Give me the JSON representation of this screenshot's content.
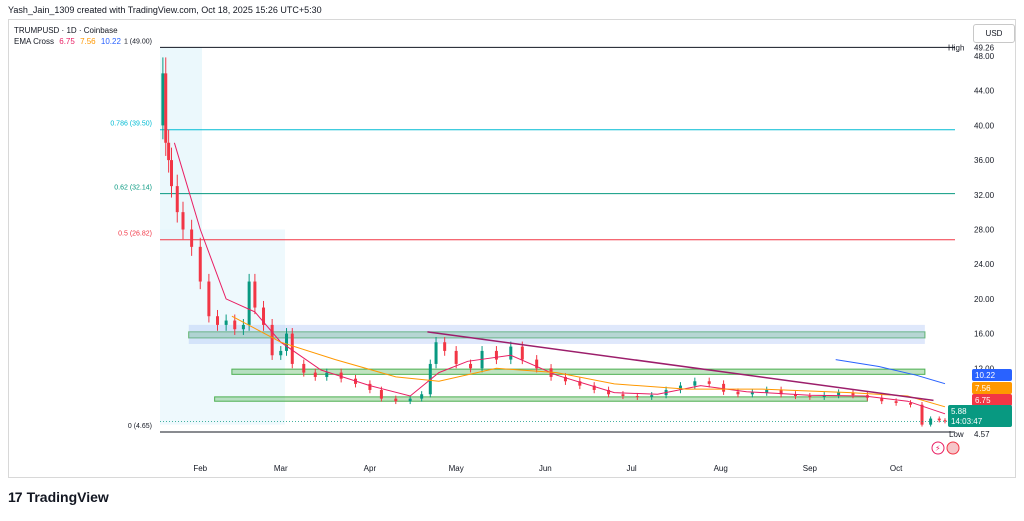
{
  "header": {
    "creator": "Yash_Jain_1309 created with TradingView.com, Oct 18, 2025 15:26 UTC+5:30"
  },
  "symbol": {
    "title": "TRUMPUSD · 1D · Coinbase",
    "indicator_label": "EMA Cross",
    "ema_values": [
      "6.75",
      "7.56",
      "10.22"
    ]
  },
  "currency_button": "USD",
  "brand": {
    "name": "TradingView",
    "logo": "tv-logo-icon"
  },
  "colors": {
    "ema_fast": "#e91e63",
    "ema_mid": "#ff9800",
    "ema_slow": "#2962ff",
    "fib_0786": "#00bcd4",
    "fib_062": "#089981",
    "fib_05": "#f23645",
    "zone": "#4caf50",
    "trendline": "#9c1e6b",
    "up": "#089981",
    "down": "#f23645"
  },
  "chart_data": {
    "type": "candlestick",
    "y_axis": {
      "min": 2,
      "max": 51,
      "ticks": [
        "48.00",
        "44.00",
        "40.00",
        "36.00",
        "32.00",
        "28.00",
        "24.00",
        "20.00",
        "16.00",
        "12.00"
      ],
      "tick_values": [
        48,
        44,
        40,
        36,
        32,
        28,
        24,
        20,
        16,
        12
      ]
    },
    "x_axis": {
      "ticks": [
        "Feb",
        "Mar",
        "Apr",
        "May",
        "Jun",
        "Jul",
        "Aug",
        "Sep",
        "Oct"
      ],
      "tick_dates": [
        "2025-02-01",
        "2025-03-01",
        "2025-04-01",
        "2025-05-01",
        "2025-06-01",
        "2025-07-01",
        "2025-08-01",
        "2025-09-01",
        "2025-10-01"
      ],
      "start": "2025-01-18",
      "end": "2025-10-18"
    },
    "fib_levels": [
      {
        "label": "1 (49.00)",
        "value": 49.0,
        "color": "#131722"
      },
      {
        "label": "0.786 (39.50)",
        "value": 39.5,
        "color": "#00bcd4"
      },
      {
        "label": "0.62 (32.14)",
        "value": 32.14,
        "color": "#089981"
      },
      {
        "label": "0.5 (26.82)",
        "value": 26.82,
        "color": "#f23645"
      },
      {
        "label": "0 (4.65)",
        "value": 4.65,
        "color": "#131722"
      }
    ],
    "high": {
      "label": "High",
      "value": "49.26"
    },
    "low": {
      "label": "Low",
      "value": "4.57"
    },
    "price_labels": [
      {
        "text": "10.22",
        "value": 10.22,
        "color": "#2962ff"
      },
      {
        "text": "7.56",
        "value": 7.56,
        "color": "#ff9800"
      },
      {
        "text": "6.75",
        "value": 6.75,
        "color": "#f23645"
      },
      {
        "text": "5.88",
        "value": 5.88,
        "color": "#089981"
      }
    ],
    "countdown": "14:03:47",
    "zones": [
      {
        "from": "2025-01-28",
        "to": "2025-10-11",
        "low": 15.5,
        "high": 16.2
      },
      {
        "from": "2025-02-12",
        "to": "2025-10-11",
        "low": 11.3,
        "high": 11.9
      },
      {
        "from": "2025-02-06",
        "to": "2025-09-21",
        "low": 8.2,
        "high": 8.7
      }
    ],
    "trendline": [
      {
        "date": "2025-04-21",
        "value": 16.2
      },
      {
        "date": "2025-10-14",
        "value": 8.3
      }
    ],
    "series": [
      {
        "name": "TRUMPUSD",
        "kind": "ohlc_close",
        "points": [
          [
            "2025-01-18",
            40.0
          ],
          [
            "2025-01-19",
            46.0
          ],
          [
            "2025-01-20",
            38.0
          ],
          [
            "2025-01-21",
            36.0
          ],
          [
            "2025-01-22",
            33.0
          ],
          [
            "2025-01-24",
            30.0
          ],
          [
            "2025-01-26",
            28.0
          ],
          [
            "2025-01-29",
            26.0
          ],
          [
            "2025-02-01",
            22.0
          ],
          [
            "2025-02-04",
            18.0
          ],
          [
            "2025-02-07",
            17.0
          ],
          [
            "2025-02-10",
            17.5
          ],
          [
            "2025-02-13",
            16.5
          ],
          [
            "2025-02-16",
            17.0
          ],
          [
            "2025-02-18",
            22.0
          ],
          [
            "2025-02-20",
            19.0
          ],
          [
            "2025-02-23",
            17.0
          ],
          [
            "2025-02-26",
            13.5
          ],
          [
            "2025-03-01",
            14.0
          ],
          [
            "2025-03-03",
            16.0
          ],
          [
            "2025-03-05",
            12.5
          ],
          [
            "2025-03-09",
            11.5
          ],
          [
            "2025-03-13",
            11.0
          ],
          [
            "2025-03-17",
            11.5
          ],
          [
            "2025-03-22",
            10.8
          ],
          [
            "2025-03-27",
            10.2
          ],
          [
            "2025-04-01",
            9.5
          ],
          [
            "2025-04-05",
            8.5
          ],
          [
            "2025-04-10",
            8.2
          ],
          [
            "2025-04-15",
            8.5
          ],
          [
            "2025-04-19",
            9.0
          ],
          [
            "2025-04-22",
            12.5
          ],
          [
            "2025-04-24",
            15.0
          ],
          [
            "2025-04-27",
            14.0
          ],
          [
            "2025-05-01",
            12.5
          ],
          [
            "2025-05-06",
            12.0
          ],
          [
            "2025-05-10",
            14.0
          ],
          [
            "2025-05-15",
            13.0
          ],
          [
            "2025-05-20",
            14.5
          ],
          [
            "2025-05-24",
            13.0
          ],
          [
            "2025-05-29",
            12.0
          ],
          [
            "2025-06-03",
            11.0
          ],
          [
            "2025-06-08",
            10.5
          ],
          [
            "2025-06-13",
            10.0
          ],
          [
            "2025-06-18",
            9.5
          ],
          [
            "2025-06-23",
            9.0
          ],
          [
            "2025-06-28",
            8.8
          ],
          [
            "2025-07-03",
            8.7
          ],
          [
            "2025-07-08",
            8.9
          ],
          [
            "2025-07-13",
            9.5
          ],
          [
            "2025-07-18",
            10.0
          ],
          [
            "2025-07-23",
            10.5
          ],
          [
            "2025-07-28",
            10.2
          ],
          [
            "2025-08-02",
            9.3
          ],
          [
            "2025-08-07",
            9.0
          ],
          [
            "2025-08-12",
            9.2
          ],
          [
            "2025-08-17",
            9.5
          ],
          [
            "2025-08-22",
            9.0
          ],
          [
            "2025-08-27",
            8.8
          ],
          [
            "2025-09-01",
            8.7
          ],
          [
            "2025-09-06",
            8.9
          ],
          [
            "2025-09-11",
            9.2
          ],
          [
            "2025-09-16",
            8.9
          ],
          [
            "2025-09-21",
            8.6
          ],
          [
            "2025-09-26",
            8.2
          ],
          [
            "2025-10-01",
            8.0
          ],
          [
            "2025-10-06",
            7.8
          ],
          [
            "2025-10-10",
            5.5
          ],
          [
            "2025-10-13",
            6.2
          ],
          [
            "2025-10-16",
            6.0
          ],
          [
            "2025-10-18",
            5.88
          ]
        ]
      },
      {
        "name": "EMA 9",
        "kind": "line",
        "color": "#e91e63",
        "points": [
          [
            "2025-01-23",
            38.0
          ],
          [
            "2025-02-01",
            28.0
          ],
          [
            "2025-02-10",
            20.0
          ],
          [
            "2025-02-20",
            18.5
          ],
          [
            "2025-03-01",
            15.0
          ],
          [
            "2025-03-15",
            11.8
          ],
          [
            "2025-04-01",
            10.0
          ],
          [
            "2025-04-15",
            8.8
          ],
          [
            "2025-04-25",
            11.5
          ],
          [
            "2025-05-05",
            12.8
          ],
          [
            "2025-05-20",
            13.5
          ],
          [
            "2025-06-05",
            11.2
          ],
          [
            "2025-06-25",
            9.2
          ],
          [
            "2025-07-10",
            9.0
          ],
          [
            "2025-07-25",
            10.0
          ],
          [
            "2025-08-10",
            9.3
          ],
          [
            "2025-09-01",
            8.9
          ],
          [
            "2025-09-20",
            8.8
          ],
          [
            "2025-10-05",
            8.2
          ],
          [
            "2025-10-18",
            6.75
          ]
        ]
      },
      {
        "name": "EMA 21",
        "kind": "line",
        "color": "#ff9800",
        "points": [
          [
            "2025-02-12",
            18.0
          ],
          [
            "2025-03-01",
            15.0
          ],
          [
            "2025-03-20",
            13.0
          ],
          [
            "2025-04-10",
            11.0
          ],
          [
            "2025-04-25",
            10.5
          ],
          [
            "2025-05-15",
            12.0
          ],
          [
            "2025-06-05",
            11.5
          ],
          [
            "2025-06-25",
            10.2
          ],
          [
            "2025-07-20",
            9.6
          ],
          [
            "2025-08-15",
            9.6
          ],
          [
            "2025-09-15",
            9.2
          ],
          [
            "2025-10-05",
            8.8
          ],
          [
            "2025-10-18",
            7.56
          ]
        ]
      },
      {
        "name": "EMA 55",
        "kind": "line",
        "color": "#2962ff",
        "points": [
          [
            "2025-09-10",
            13.0
          ],
          [
            "2025-09-25",
            12.2
          ],
          [
            "2025-10-08",
            11.2
          ],
          [
            "2025-10-18",
            10.22
          ]
        ]
      }
    ]
  }
}
